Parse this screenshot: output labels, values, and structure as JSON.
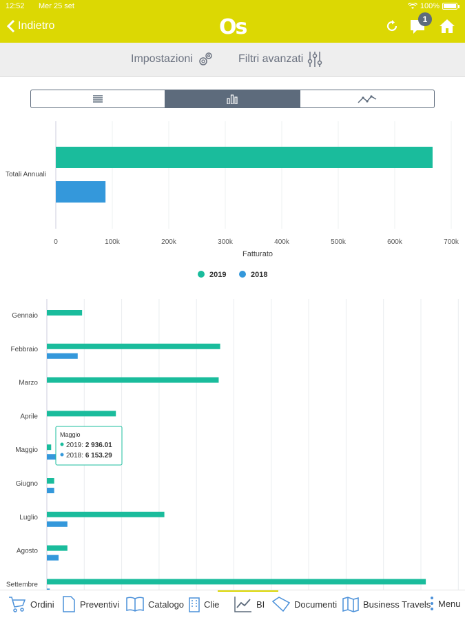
{
  "status": {
    "time": "12:52",
    "date": "Mer 25 set",
    "battery": "100%"
  },
  "nav": {
    "back_label": "Indietro",
    "logo": "Os",
    "notification_count": "1"
  },
  "subbar": {
    "settings": "Impostazioni",
    "filters": "Filtri avanzati"
  },
  "colors": {
    "series2019": "#1abc9c",
    "series2018": "#3498db",
    "accent": "#dcd803"
  },
  "chart_data": [
    {
      "type": "bar",
      "orientation": "horizontal",
      "categories": [
        "Totali Annuali"
      ],
      "series": [
        {
          "name": "2019",
          "values": [
            667000
          ]
        },
        {
          "name": "2018",
          "values": [
            88000
          ]
        }
      ],
      "xlabel": "Fatturato",
      "xlim": [
        0,
        700000
      ],
      "xticks": [
        "0",
        "100k",
        "200k",
        "300k",
        "400k",
        "500k",
        "600k",
        "700k"
      ],
      "legend": [
        "2019",
        "2018"
      ]
    },
    {
      "type": "bar",
      "orientation": "horizontal",
      "categories": [
        "Gennaio",
        "Febbraio",
        "Marzo",
        "Aprile",
        "Maggio",
        "Giugno",
        "Luglio",
        "Agosto",
        "Settembre"
      ],
      "series": [
        {
          "name": "2019",
          "values": [
            24000,
            118000,
            117000,
            47000,
            2936.01,
            5000,
            80000,
            14000,
            258000
          ]
        },
        {
          "name": "2018",
          "values": [
            null,
            21000,
            null,
            null,
            6153.29,
            5000,
            14000,
            8000,
            2000
          ]
        }
      ],
      "xlim": [
        0,
        280000
      ],
      "tooltip": {
        "title": "Maggio",
        "row1_label": "2019:",
        "row1_value": "2 936.01",
        "row2_label": "2018:",
        "row2_value": "6 153.29"
      }
    }
  ],
  "tabs": [
    {
      "label": "Ordini",
      "icon": "cart-icon"
    },
    {
      "label": "Preventivi",
      "icon": "document-icon"
    },
    {
      "label": "Catalogo",
      "icon": "book-icon"
    },
    {
      "label": "Clie",
      "icon": "building-icon"
    },
    {
      "label": "BI",
      "icon": "chart-icon"
    },
    {
      "label": "Documenti",
      "icon": "folder-icon"
    },
    {
      "label": "Business Travels",
      "icon": "map-icon"
    },
    {
      "label": "Menu",
      "icon": "more-icon"
    }
  ]
}
